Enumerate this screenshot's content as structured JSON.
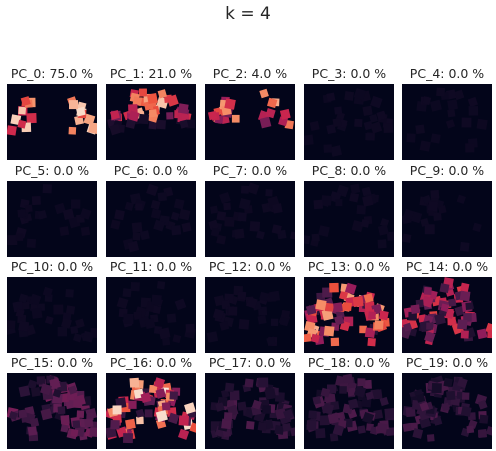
{
  "suptitle": "k = 4",
  "chart_data": {
    "type": "heatmap",
    "title": "k = 4",
    "panels": [
      {
        "label": "PC_0:  75.0 %",
        "component": 0,
        "variance_pct": 75.0
      },
      {
        "label": "PC_1:  21.0 %",
        "component": 1,
        "variance_pct": 21.0
      },
      {
        "label": "PC_2:  4.0 %",
        "component": 2,
        "variance_pct": 4.0
      },
      {
        "label": "PC_3:  0.0 %",
        "component": 3,
        "variance_pct": 0.0
      },
      {
        "label": "PC_4:  0.0 %",
        "component": 4,
        "variance_pct": 0.0
      },
      {
        "label": "PC_5:  0.0 %",
        "component": 5,
        "variance_pct": 0.0
      },
      {
        "label": "PC_6:  0.0 %",
        "component": 6,
        "variance_pct": 0.0
      },
      {
        "label": "PC_7:  0.0 %",
        "component": 7,
        "variance_pct": 0.0
      },
      {
        "label": "PC_8:  0.0 %",
        "component": 8,
        "variance_pct": 0.0
      },
      {
        "label": "PC_9:  0.0 %",
        "component": 9,
        "variance_pct": 0.0
      },
      {
        "label": "PC_10:  0.0 %",
        "component": 10,
        "variance_pct": 0.0
      },
      {
        "label": "PC_11:  0.0 %",
        "component": 11,
        "variance_pct": 0.0
      },
      {
        "label": "PC_12:  0.0 %",
        "component": 12,
        "variance_pct": 0.0
      },
      {
        "label": "PC_13:  0.0 %",
        "component": 13,
        "variance_pct": 0.0
      },
      {
        "label": "PC_14:  0.0 %",
        "component": 14,
        "variance_pct": 0.0
      },
      {
        "label": "PC_15:  0.0 %",
        "component": 15,
        "variance_pct": 0.0
      },
      {
        "label": "PC_16:  0.0 %",
        "component": 16,
        "variance_pct": 0.0
      },
      {
        "label": "PC_17:  0.0 %",
        "component": 17,
        "variance_pct": 0.0
      },
      {
        "label": "PC_18:  0.0 %",
        "component": 18,
        "variance_pct": 0.0
      },
      {
        "label": "PC_19:  0.0 %",
        "component": 19,
        "variance_pct": 0.0
      }
    ],
    "grid": false,
    "legend": "none",
    "colormap": "rocket",
    "background_color": "#03051a"
  }
}
